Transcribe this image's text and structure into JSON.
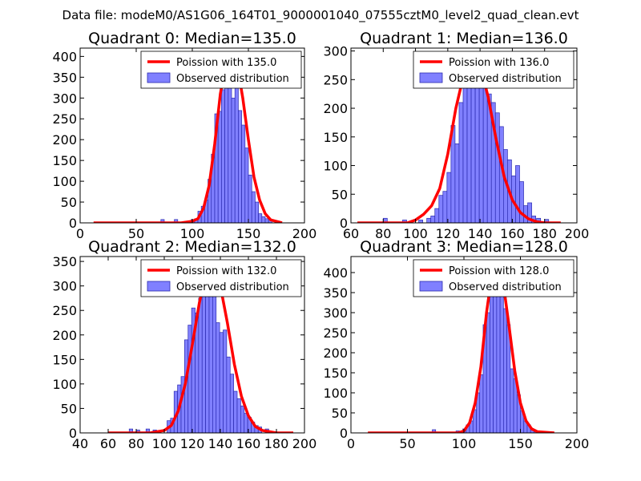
{
  "suptitle": "Data file: modeM0/AS1G06_164T01_9000001040_07555cztM0_level2_quad_clean.evt",
  "colors": {
    "bar_fill": "#8080ff",
    "bar_edge": "#2b2bb0",
    "poisson": "#ff0000"
  },
  "chart_data": [
    {
      "type": "bar",
      "title": "Quadrant 0: Median=135.0",
      "xlim": [
        0,
        200
      ],
      "ylim": [
        0,
        420
      ],
      "xticks": [
        0,
        50,
        100,
        150,
        200
      ],
      "yticks": [
        0,
        50,
        100,
        150,
        200,
        250,
        300,
        350,
        400
      ],
      "legend": [
        "Poission with 135.0",
        "Observed distribution"
      ],
      "median": 135.0,
      "bin_width": 3,
      "bins": [
        [
          72,
          8
        ],
        [
          84,
          8
        ],
        [
          93,
          3
        ],
        [
          96,
          5
        ],
        [
          99,
          8
        ],
        [
          102,
          10
        ],
        [
          105,
          28
        ],
        [
          108,
          40
        ],
        [
          111,
          55
        ],
        [
          114,
          105
        ],
        [
          117,
          165
        ],
        [
          120,
          262
        ],
        [
          123,
          268
        ],
        [
          126,
          320
        ],
        [
          129,
          395
        ],
        [
          132,
          400
        ],
        [
          135,
          300
        ],
        [
          138,
          345
        ],
        [
          141,
          270
        ],
        [
          144,
          235
        ],
        [
          147,
          180
        ],
        [
          150,
          115
        ],
        [
          153,
          75
        ],
        [
          156,
          50
        ],
        [
          159,
          22
        ],
        [
          162,
          15
        ],
        [
          165,
          10
        ],
        [
          168,
          8
        ],
        [
          174,
          5
        ]
      ],
      "poisson": {
        "x": [
          12,
          80,
          90,
          100,
          105,
          110,
          115,
          120,
          125,
          130,
          135,
          140,
          145,
          150,
          155,
          160,
          165,
          170,
          180
        ],
        "y": [
          0,
          0,
          0,
          4,
          10,
          35,
          90,
          190,
          310,
          385,
          405,
          380,
          300,
          200,
          110,
          55,
          22,
          7,
          0
        ]
      }
    },
    {
      "type": "bar",
      "title": "Quadrant 1: Median=136.0",
      "xlim": [
        60,
        200
      ],
      "ylim": [
        0,
        305
      ],
      "xticks": [
        60,
        80,
        100,
        120,
        140,
        160,
        180,
        200
      ],
      "yticks": [
        0,
        50,
        100,
        150,
        200,
        250,
        300
      ],
      "legend": [
        "Poission with 136.0",
        "Observed distribution"
      ],
      "median": 136.0,
      "bin_width": 2.5,
      "bins": [
        [
          80,
          8
        ],
        [
          92,
          5
        ],
        [
          102,
          5
        ],
        [
          107,
          8
        ],
        [
          109.5,
          12
        ],
        [
          112,
          25
        ],
        [
          114.5,
          48
        ],
        [
          117,
          55
        ],
        [
          119.5,
          88
        ],
        [
          122,
          170
        ],
        [
          124.5,
          138
        ],
        [
          127,
          210
        ],
        [
          129.5,
          245
        ],
        [
          132,
          290
        ],
        [
          134.5,
          245
        ],
        [
          137,
          290
        ],
        [
          139.5,
          260
        ],
        [
          142,
          245
        ],
        [
          144.5,
          225
        ],
        [
          147,
          210
        ],
        [
          149.5,
          192
        ],
        [
          152,
          168
        ],
        [
          154.5,
          128
        ],
        [
          157,
          110
        ],
        [
          159.5,
          82
        ],
        [
          162,
          100
        ],
        [
          164.5,
          72
        ],
        [
          167,
          30
        ],
        [
          169.5,
          35
        ],
        [
          172,
          12
        ],
        [
          175,
          8
        ],
        [
          180,
          6
        ]
      ],
      "poisson": {
        "x": [
          64,
          80,
          95,
          100,
          105,
          110,
          115,
          120,
          125,
          130,
          135,
          140,
          145,
          150,
          155,
          160,
          165,
          170,
          175,
          180,
          190
        ],
        "y": [
          0,
          0,
          0,
          5,
          15,
          30,
          60,
          120,
          200,
          260,
          290,
          275,
          220,
          145,
          80,
          40,
          18,
          7,
          2,
          0,
          0
        ]
      }
    },
    {
      "type": "bar",
      "title": "Quadrant 2: Median=132.0",
      "xlim": [
        40,
        200
      ],
      "ylim": [
        0,
        360
      ],
      "xticks": [
        40,
        60,
        80,
        100,
        120,
        140,
        160,
        180,
        200
      ],
      "yticks": [
        0,
        50,
        100,
        150,
        200,
        250,
        300,
        350
      ],
      "legend": [
        "Poission with 132.0",
        "Observed distribution"
      ],
      "median": 132.0,
      "bin_width": 2.5,
      "bins": [
        [
          75,
          8
        ],
        [
          80,
          6
        ],
        [
          87,
          8
        ],
        [
          92,
          6
        ],
        [
          102,
          25
        ],
        [
          104.5,
          30
        ],
        [
          107,
          85
        ],
        [
          109.5,
          98
        ],
        [
          112,
          115
        ],
        [
          114.5,
          190
        ],
        [
          117,
          220
        ],
        [
          119.5,
          255
        ],
        [
          122,
          245
        ],
        [
          124.5,
          275
        ],
        [
          127,
          300
        ],
        [
          129.5,
          320
        ],
        [
          132,
          300
        ],
        [
          134.5,
          310
        ],
        [
          137,
          225
        ],
        [
          139.5,
          205
        ],
        [
          142,
          210
        ],
        [
          144.5,
          155
        ],
        [
          147,
          120
        ],
        [
          149.5,
          85
        ],
        [
          152,
          70
        ],
        [
          154.5,
          55
        ],
        [
          157,
          40
        ],
        [
          159.5,
          32
        ],
        [
          162,
          22
        ],
        [
          164.5,
          15
        ],
        [
          167,
          12
        ],
        [
          172,
          8
        ]
      ],
      "poisson": {
        "x": [
          60,
          90,
          100,
          105,
          110,
          115,
          120,
          125,
          130,
          135,
          140,
          145,
          150,
          155,
          160,
          165,
          170,
          180,
          192
        ],
        "y": [
          0,
          0,
          5,
          15,
          45,
          100,
          180,
          265,
          330,
          340,
          300,
          225,
          140,
          75,
          35,
          13,
          5,
          0,
          0
        ]
      }
    },
    {
      "type": "bar",
      "title": "Quadrant 3: Median=128.0",
      "xlim": [
        0,
        200
      ],
      "ylim": [
        0,
        440
      ],
      "xticks": [
        0,
        50,
        100,
        150,
        200
      ],
      "yticks": [
        0,
        50,
        100,
        150,
        200,
        250,
        300,
        350,
        400
      ],
      "legend": [
        "Poission with 128.0",
        "Observed distribution"
      ],
      "median": 128.0,
      "bin_width": 3,
      "bins": [
        [
          72,
          8
        ],
        [
          93,
          5
        ],
        [
          99,
          10
        ],
        [
          102,
          20
        ],
        [
          105,
          30
        ],
        [
          108,
          58
        ],
        [
          111,
          100
        ],
        [
          114,
          145
        ],
        [
          117,
          270
        ],
        [
          120,
          300
        ],
        [
          123,
          360
        ],
        [
          126,
          380
        ],
        [
          129,
          405
        ],
        [
          132,
          385
        ],
        [
          135,
          310
        ],
        [
          138,
          270
        ],
        [
          141,
          160
        ],
        [
          144,
          135
        ],
        [
          147,
          95
        ],
        [
          150,
          55
        ],
        [
          153,
          30
        ],
        [
          156,
          20
        ],
        [
          159,
          10
        ],
        [
          162,
          5
        ]
      ],
      "poisson": {
        "x": [
          15,
          80,
          95,
          100,
          105,
          110,
          115,
          120,
          125,
          130,
          135,
          140,
          145,
          150,
          155,
          160,
          165,
          180
        ],
        "y": [
          0,
          0,
          0,
          5,
          25,
          75,
          165,
          300,
          400,
          415,
          370,
          265,
          155,
          75,
          30,
          10,
          3,
          0
        ]
      }
    }
  ]
}
